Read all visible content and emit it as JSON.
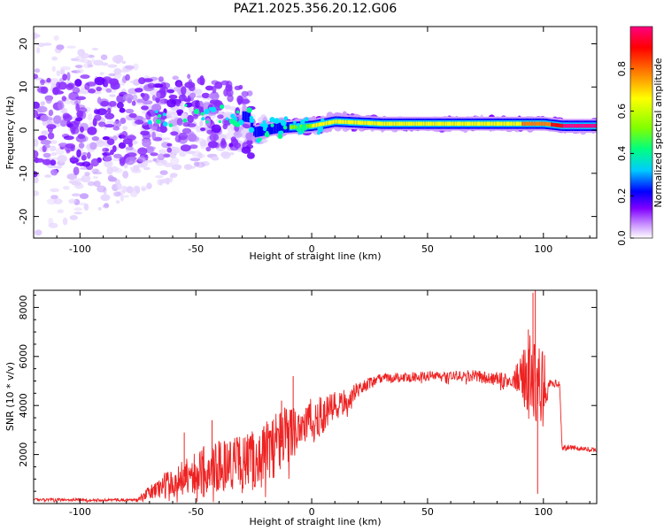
{
  "title": "PAZ1.2025.356.20.12.G06",
  "chart_data": [
    {
      "type": "heatmap",
      "name": "spectrogram",
      "xlabel": "Height of straight line (km)",
      "ylabel": "Frequency (Hz)",
      "xlim": [
        -120,
        123
      ],
      "ylim": [
        -25,
        24
      ],
      "xticks": [
        -100,
        -50,
        0,
        50,
        100
      ],
      "yticks": [
        -20,
        -10,
        0,
        10,
        20
      ],
      "colorbar": {
        "label": "Normalized spectral amplitude",
        "range": [
          0,
          1
        ],
        "ticks": [
          0.0,
          0.2,
          0.4,
          0.6,
          0.8
        ],
        "colormap": [
          "#ffffff",
          "#cc99ff",
          "#8000ff",
          "#0000ff",
          "#00ccff",
          "#00ff80",
          "#80ff00",
          "#ffff00",
          "#ff8000",
          "#ff0000",
          "#ff0080"
        ]
      },
      "ridge": [
        {
          "x": -120,
          "f": 1.5,
          "a": 0.25
        },
        {
          "x": -100,
          "f": 1.5,
          "a": 0.25
        },
        {
          "x": -75,
          "f": 2.5,
          "a": 0.3
        },
        {
          "x": -55,
          "f": 3.5,
          "a": 0.3
        },
        {
          "x": -45,
          "f": 4.0,
          "a": 0.35
        },
        {
          "x": -35,
          "f": 3.5,
          "a": 0.35
        },
        {
          "x": -27,
          "f": 3.0,
          "a": 0.3
        },
        {
          "x": -25,
          "f": -0.5,
          "a": 0.35
        },
        {
          "x": -15,
          "f": 0.5,
          "a": 0.45
        },
        {
          "x": 0,
          "f": 1.0,
          "a": 0.6
        },
        {
          "x": 10,
          "f": 2.0,
          "a": 0.6
        },
        {
          "x": 30,
          "f": 1.5,
          "a": 0.6
        },
        {
          "x": 60,
          "f": 1.5,
          "a": 0.65
        },
        {
          "x": 90,
          "f": 1.5,
          "a": 0.7
        },
        {
          "x": 100,
          "f": 1.5,
          "a": 0.75
        },
        {
          "x": 108,
          "f": 1.0,
          "a": 0.9
        },
        {
          "x": 123,
          "f": 1.0,
          "a": 0.95
        }
      ]
    },
    {
      "type": "line",
      "name": "snr",
      "xlabel": "Height of straight line (km)",
      "ylabel": "SNR (10 * v/v)",
      "xlim": [
        -120,
        123
      ],
      "ylim": [
        0,
        8700
      ],
      "xticks": [
        -100,
        -50,
        0,
        50,
        100
      ],
      "yticks": [
        2000,
        4000,
        6000,
        8000
      ],
      "color": "#ee2222",
      "envelope": [
        {
          "x": -120,
          "y": 150,
          "jitter": 60
        },
        {
          "x": -75,
          "y": 150,
          "jitter": 60
        },
        {
          "x": -72,
          "y": 350,
          "jitter": 200
        },
        {
          "x": -60,
          "y": 900,
          "jitter": 700
        },
        {
          "x": -50,
          "y": 1300,
          "jitter": 900
        },
        {
          "x": -40,
          "y": 1600,
          "jitter": 1100
        },
        {
          "x": -30,
          "y": 1700,
          "jitter": 1100
        },
        {
          "x": -22,
          "y": 1900,
          "jitter": 1300
        },
        {
          "x": -15,
          "y": 2500,
          "jitter": 1400
        },
        {
          "x": -5,
          "y": 3200,
          "jitter": 1000
        },
        {
          "x": 5,
          "y": 3600,
          "jitter": 800
        },
        {
          "x": 15,
          "y": 4200,
          "jitter": 500
        },
        {
          "x": 20,
          "y": 4700,
          "jitter": 250
        },
        {
          "x": 30,
          "y": 5100,
          "jitter": 200
        },
        {
          "x": 50,
          "y": 5200,
          "jitter": 200
        },
        {
          "x": 70,
          "y": 5200,
          "jitter": 250
        },
        {
          "x": 85,
          "y": 5000,
          "jitter": 300
        },
        {
          "x": 90,
          "y": 5200,
          "jitter": 700
        },
        {
          "x": 95,
          "y": 5000,
          "jitter": 2200
        },
        {
          "x": 100,
          "y": 4900,
          "jitter": 1400
        },
        {
          "x": 103,
          "y": 4900,
          "jitter": 150
        },
        {
          "x": 107,
          "y": 4900,
          "jitter": 150
        },
        {
          "x": 108,
          "y": 2300,
          "jitter": 120
        },
        {
          "x": 123,
          "y": 2200,
          "jitter": 80
        }
      ],
      "spikes": [
        {
          "x": 95.5,
          "y": 8600
        },
        {
          "x": 96.5,
          "y": 8700
        },
        {
          "x": 97.5,
          "y": 400
        },
        {
          "x": 93.5,
          "y": 7100
        },
        {
          "x": -43,
          "y": 3400
        },
        {
          "x": -55,
          "y": 2900
        },
        {
          "x": -13,
          "y": 4200
        },
        {
          "x": -8,
          "y": 5200
        }
      ]
    }
  ]
}
